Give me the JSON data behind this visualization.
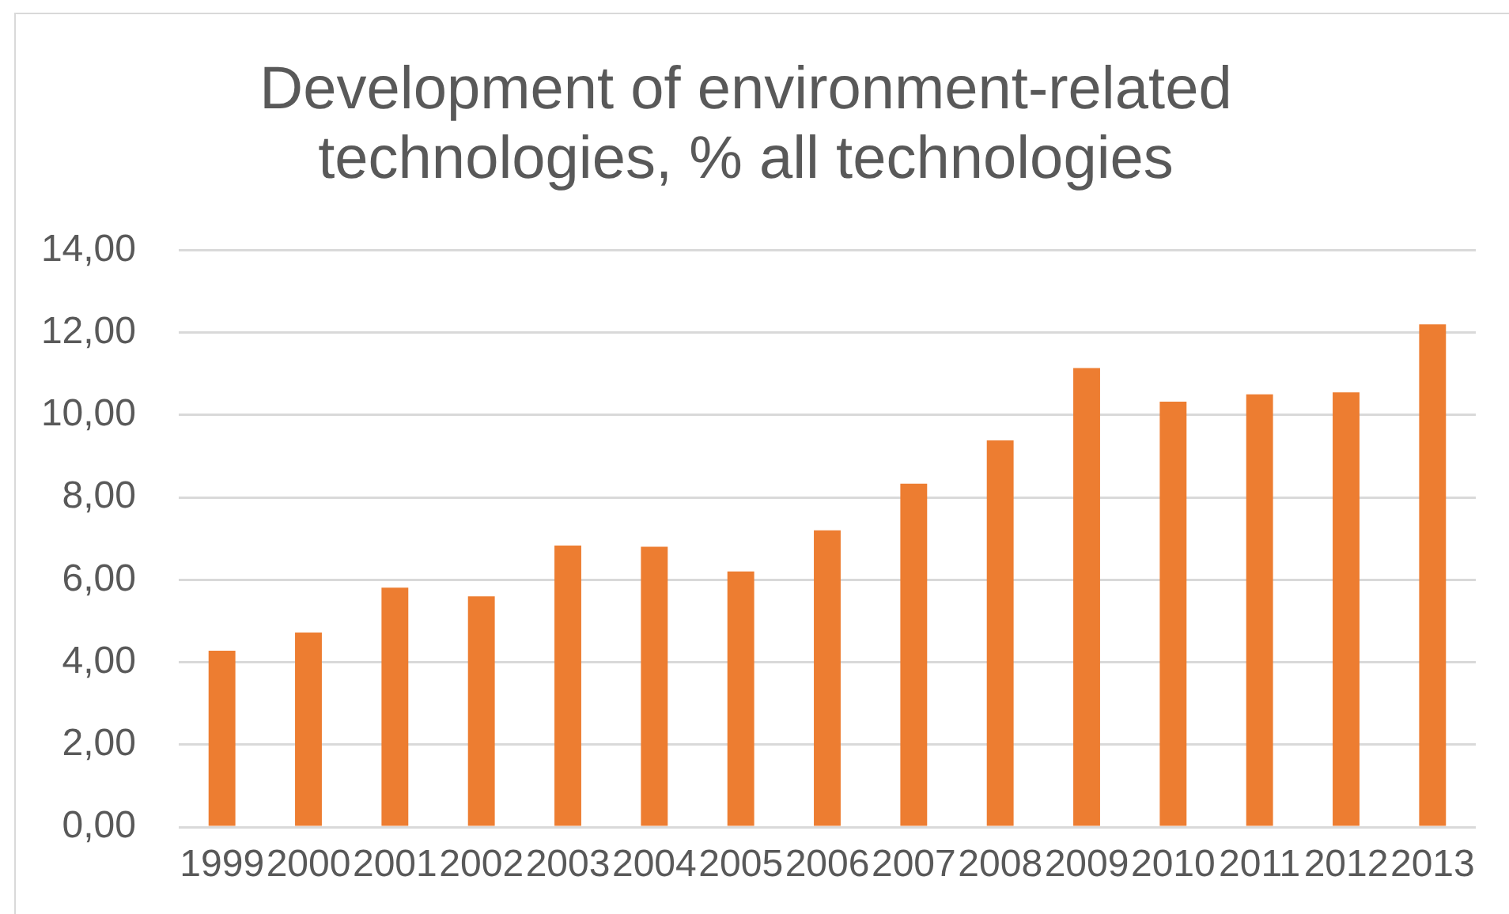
{
  "chart_data": {
    "type": "bar",
    "title": "Development of environment-related technologies, % all technologies",
    "categories": [
      "1999",
      "2000",
      "2001",
      "2002",
      "2003",
      "2004",
      "2005",
      "2006",
      "2007",
      "2008",
      "2009",
      "2010",
      "2011",
      "2012",
      "2013"
    ],
    "values": [
      4.28,
      4.72,
      5.81,
      5.6,
      6.83,
      6.8,
      6.2,
      7.2,
      8.33,
      9.38,
      11.14,
      10.32,
      10.5,
      10.55,
      12.2
    ],
    "color": "#ed7d31",
    "ylim": [
      0,
      14
    ],
    "yticks": [
      {
        "value": 0,
        "label": "0,00"
      },
      {
        "value": 2,
        "label": "2,00"
      },
      {
        "value": 4,
        "label": "4,00"
      },
      {
        "value": 6,
        "label": "6,00"
      },
      {
        "value": 8,
        "label": "8,00"
      },
      {
        "value": 10,
        "label": "10,00"
      },
      {
        "value": 12,
        "label": "12,00"
      },
      {
        "value": 14,
        "label": "14,00"
      }
    ],
    "grid": "y"
  }
}
